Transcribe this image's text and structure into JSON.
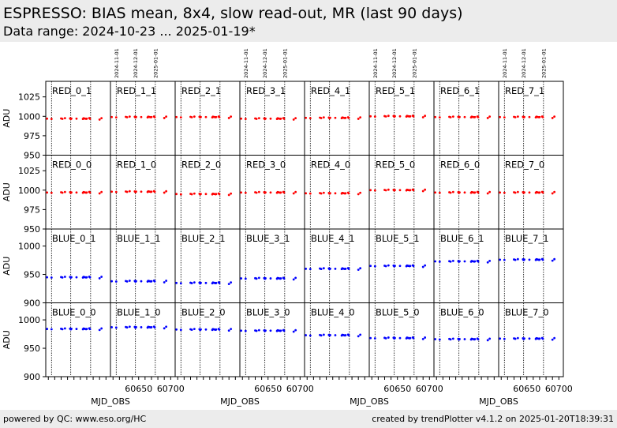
{
  "header": {
    "title": "ESPRESSO: BIAS mean, 8x4, slow read-out, MR (last 90 days)",
    "subtitle": "Data range: 2024-10-23 ... 2025-01-19*"
  },
  "footer": {
    "left": "powered by QC: www.eso.org/HC",
    "right": "created by trendPlotter v4.1.2 on 2025-01-20T18:39:31"
  },
  "colors": {
    "red_series": "#ff0000",
    "blue_series": "#0000ff",
    "band": "#ececec"
  },
  "chart_data": {
    "type": "scatter",
    "xlabel": "MJD_OBS",
    "ylabel": "ADU",
    "xlim": [
      60606,
      60707
    ],
    "x_ticks": [
      60650,
      60700
    ],
    "date_markers": [
      {
        "label": "2024-11-01",
        "mjd": 60615
      },
      {
        "label": "2024-12-01",
        "mjd": 60645
      },
      {
        "label": "2025-01-01",
        "mjd": 60676
      }
    ],
    "grid": "date-markers",
    "rows": [
      {
        "ylim": [
          950,
          1045
        ],
        "yticks": [
          950,
          975,
          1000,
          1025
        ]
      },
      {
        "ylim": [
          950,
          1045
        ],
        "yticks": [
          950,
          975,
          1000,
          1025
        ]
      },
      {
        "ylim": [
          900,
          1030
        ],
        "yticks": [
          900,
          950,
          1000
        ]
      },
      {
        "ylim": [
          900,
          1030
        ],
        "yticks": [
          900,
          950,
          1000
        ]
      }
    ],
    "panels": [
      {
        "row": 0,
        "col": 0,
        "name": "RED_0_1",
        "color": "red",
        "level": 997
      },
      {
        "row": 0,
        "col": 1,
        "name": "RED_1_1",
        "color": "red",
        "level": 999
      },
      {
        "row": 0,
        "col": 2,
        "name": "RED_2_1",
        "color": "red",
        "level": 999
      },
      {
        "row": 0,
        "col": 3,
        "name": "RED_3_1",
        "color": "red",
        "level": 997
      },
      {
        "row": 0,
        "col": 4,
        "name": "RED_4_1",
        "color": "red",
        "level": 998
      },
      {
        "row": 0,
        "col": 5,
        "name": "RED_5_1",
        "color": "red",
        "level": 1000
      },
      {
        "row": 0,
        "col": 6,
        "name": "RED_6_1",
        "color": "red",
        "level": 999
      },
      {
        "row": 0,
        "col": 7,
        "name": "RED_7_1",
        "color": "red",
        "level": 999
      },
      {
        "row": 1,
        "col": 0,
        "name": "RED_0_0",
        "color": "red",
        "level": 997
      },
      {
        "row": 1,
        "col": 1,
        "name": "RED_1_0",
        "color": "red",
        "level": 998
      },
      {
        "row": 1,
        "col": 2,
        "name": "RED_2_0",
        "color": "red",
        "level": 995
      },
      {
        "row": 1,
        "col": 3,
        "name": "RED_3_0",
        "color": "red",
        "level": 997
      },
      {
        "row": 1,
        "col": 4,
        "name": "RED_4_0",
        "color": "red",
        "level": 996
      },
      {
        "row": 1,
        "col": 5,
        "name": "RED_5_0",
        "color": "red",
        "level": 1000
      },
      {
        "row": 1,
        "col": 6,
        "name": "RED_6_0",
        "color": "red",
        "level": 997
      },
      {
        "row": 1,
        "col": 7,
        "name": "RED_7_0",
        "color": "red",
        "level": 997
      },
      {
        "row": 2,
        "col": 0,
        "name": "BLUE_0_1",
        "color": "blue",
        "level": 945
      },
      {
        "row": 2,
        "col": 1,
        "name": "BLUE_1_1",
        "color": "blue",
        "level": 938
      },
      {
        "row": 2,
        "col": 2,
        "name": "BLUE_2_1",
        "color": "blue",
        "level": 935
      },
      {
        "row": 2,
        "col": 3,
        "name": "BLUE_3_1",
        "color": "blue",
        "level": 943
      },
      {
        "row": 2,
        "col": 4,
        "name": "BLUE_4_1",
        "color": "blue",
        "level": 960
      },
      {
        "row": 2,
        "col": 5,
        "name": "BLUE_5_1",
        "color": "blue",
        "level": 965
      },
      {
        "row": 2,
        "col": 6,
        "name": "BLUE_6_1",
        "color": "blue",
        "level": 973
      },
      {
        "row": 2,
        "col": 7,
        "name": "BLUE_7_1",
        "color": "blue",
        "level": 976
      },
      {
        "row": 3,
        "col": 0,
        "name": "BLUE_0_0",
        "color": "blue",
        "level": 984
      },
      {
        "row": 3,
        "col": 1,
        "name": "BLUE_1_0",
        "color": "blue",
        "level": 987
      },
      {
        "row": 3,
        "col": 2,
        "name": "BLUE_2_0",
        "color": "blue",
        "level": 983
      },
      {
        "row": 3,
        "col": 3,
        "name": "BLUE_3_0",
        "color": "blue",
        "level": 981
      },
      {
        "row": 3,
        "col": 4,
        "name": "BLUE_4_0",
        "color": "blue",
        "level": 973
      },
      {
        "row": 3,
        "col": 5,
        "name": "BLUE_5_0",
        "color": "blue",
        "level": 968
      },
      {
        "row": 3,
        "col": 6,
        "name": "BLUE_6_0",
        "color": "blue",
        "level": 966
      },
      {
        "row": 3,
        "col": 7,
        "name": "BLUE_7_0",
        "color": "blue",
        "level": 967
      }
    ],
    "observation_offsets": [
      {
        "mjd": 60608,
        "dy": 0.0
      },
      {
        "mjd": 60615,
        "dy": -0.3
      },
      {
        "mjd": 60630,
        "dy": 0.2
      },
      {
        "mjd": 60632,
        "dy": -0.2
      },
      {
        "mjd": 60636,
        "dy": 0.5
      },
      {
        "mjd": 60644,
        "dy": 0.3
      },
      {
        "mjd": 60645,
        "dy": -0.4
      },
      {
        "mjd": 60646,
        "dy": 0.1
      },
      {
        "mjd": 60654,
        "dy": 0.0
      },
      {
        "mjd": 60664,
        "dy": -0.3
      },
      {
        "mjd": 60665,
        "dy": 0.4
      },
      {
        "mjd": 60667,
        "dy": 0.1
      },
      {
        "mjd": 60669,
        "dy": -0.2
      },
      {
        "mjd": 60670,
        "dy": 0.0
      },
      {
        "mjd": 60674,
        "dy": 0.6
      },
      {
        "mjd": 60675,
        "dy": -0.1
      },
      {
        "mjd": 60690,
        "dy": -1.0
      },
      {
        "mjd": 60693,
        "dy": 0.5
      }
    ]
  }
}
